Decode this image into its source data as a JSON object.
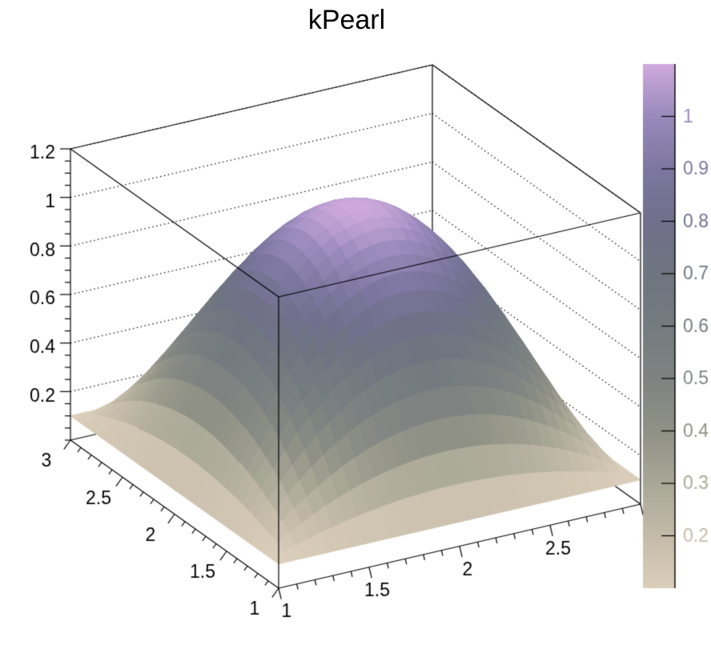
{
  "title": "kPearl",
  "colors": {
    "background": "#ffffff",
    "axis": "#000000",
    "text": "#000000"
  },
  "chart_data": {
    "type": "surface3d",
    "title": "kPearl",
    "surface_function": "z = 0.1 + (1-(x-2)^2)*(1-(y-2)^2)",
    "x_range": [
      1,
      3
    ],
    "y_range": [
      1,
      3
    ],
    "z_range": [
      0,
      1.2
    ],
    "grid_nx": 30,
    "grid_ny": 30,
    "surface_z_min": 0.1,
    "surface_z_max": 1.1,
    "x_axis": {
      "tick_values": [
        1,
        1.5,
        2,
        2.5,
        3
      ],
      "tick_labels": [
        "1",
        "1.5",
        "2",
        "2.5",
        "3"
      ],
      "minor_step": 0.1
    },
    "y_axis": {
      "tick_values": [
        1,
        1.5,
        2,
        2.5,
        3
      ],
      "tick_labels": [
        "1",
        "1.5",
        "2",
        "2.5",
        "3"
      ],
      "minor_step": 0.1
    },
    "z_axis": {
      "tick_values": [
        0.2,
        0.4,
        0.6,
        0.8,
        1.0,
        1.2
      ],
      "tick_labels": [
        "0.2",
        "0.4",
        "0.6",
        "0.8",
        "1",
        "1.2"
      ],
      "minor_step": 0.05
    },
    "grid_style": "dotted-on-back-walls",
    "palette": {
      "name": "kPearl",
      "tick_values": [
        0.2,
        0.3,
        0.4,
        0.5,
        0.6,
        0.7,
        0.8,
        0.9,
        1.0
      ],
      "tick_labels": [
        "0.2",
        "0.3",
        "0.4",
        "0.5",
        "0.6",
        "0.7",
        "0.8",
        "0.9",
        "1"
      ],
      "stops": [
        [
          0.0,
          "#dbcfbb"
        ],
        [
          0.1,
          "#c5bba9"
        ],
        [
          0.2,
          "#a9a897"
        ],
        [
          0.3,
          "#909186"
        ],
        [
          0.4,
          "#7f8482"
        ],
        [
          0.5,
          "#757c80"
        ],
        [
          0.6,
          "#6e7580"
        ],
        [
          0.7,
          "#71708c"
        ],
        [
          0.8,
          "#7d77a0"
        ],
        [
          0.9,
          "#998abb"
        ],
        [
          1.0,
          "#d0aade"
        ]
      ]
    }
  }
}
